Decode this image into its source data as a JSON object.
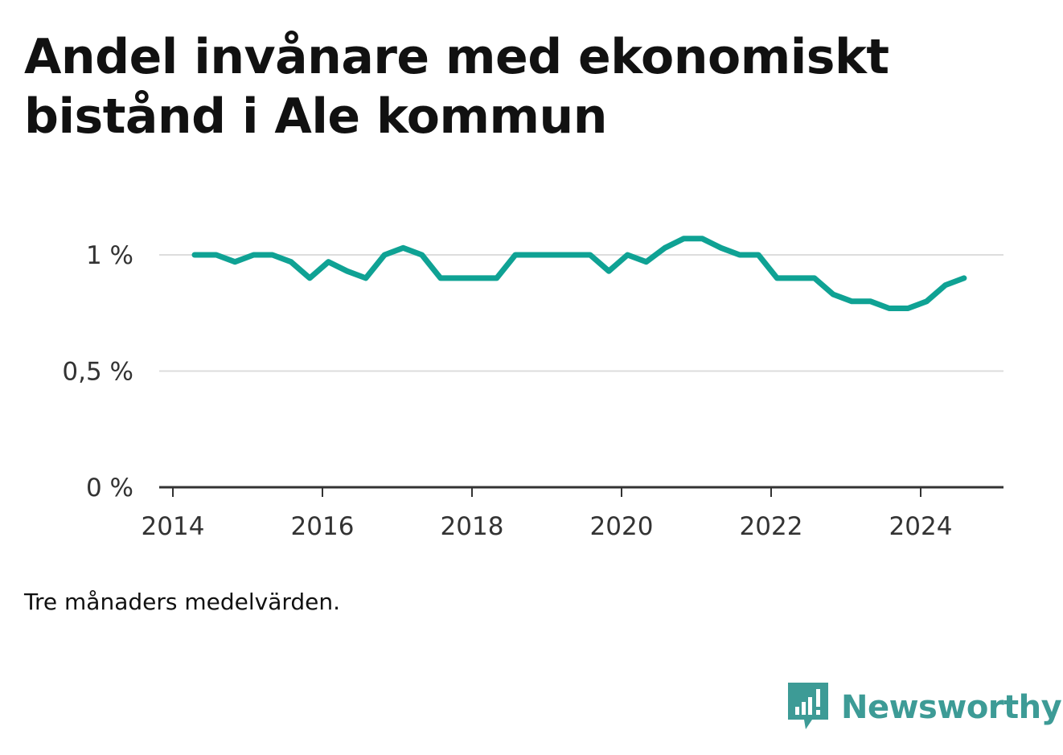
{
  "title": "Andel invånare med ekonomiskt bistånd i Ale kommun",
  "note": "Tre månaders medelvärden.",
  "brand": {
    "name": "Newsworthy",
    "icon": "newsworthy-logo-icon",
    "color": "#3d9b96"
  },
  "chart_data": {
    "type": "line",
    "title": "Andel invånare med ekonomiskt bistånd i Ale kommun",
    "xlabel": "",
    "ylabel": "",
    "xlim": [
      2014,
      2025.2
    ],
    "ylim": [
      0,
      1.15
    ],
    "grid": true,
    "legend": "none",
    "line_color": "#0fa294",
    "grid_color": "#dddddd",
    "axis_color": "#333333",
    "x_ticks": [
      {
        "value": 2014,
        "label": "2014"
      },
      {
        "value": 2016,
        "label": "2016"
      },
      {
        "value": 2018,
        "label": "2018"
      },
      {
        "value": 2020,
        "label": "2020"
      },
      {
        "value": 2022,
        "label": "2022"
      },
      {
        "value": 2024,
        "label": "2024"
      }
    ],
    "y_ticks": [
      {
        "value": 0,
        "label": "0 %"
      },
      {
        "value": 0.5,
        "label": "0,5 %"
      },
      {
        "value": 1,
        "label": "1 %"
      }
    ],
    "series": [
      {
        "x": [
          2014.29,
          2014.58,
          2014.83,
          2015.08,
          2015.33,
          2015.58,
          2015.83,
          2016.08,
          2016.33,
          2016.58,
          2016.83,
          2017.08,
          2017.33,
          2017.58,
          2017.83,
          2018.08,
          2018.33,
          2018.58,
          2018.83,
          2019.08,
          2019.33,
          2019.58,
          2019.83,
          2020.08,
          2020.33,
          2020.58,
          2020.83,
          2021.08,
          2021.33,
          2021.58,
          2021.83,
          2022.08,
          2022.33,
          2022.58,
          2022.83,
          2023.08,
          2023.33,
          2023.58,
          2023.83,
          2024.08,
          2024.33,
          2024.58
        ],
        "values": [
          1.0,
          1.0,
          0.97,
          1.0,
          1.0,
          0.97,
          0.9,
          0.97,
          0.93,
          0.9,
          1.0,
          1.03,
          1.0,
          0.9,
          0.9,
          0.9,
          0.9,
          1.0,
          1.0,
          1.0,
          1.0,
          1.0,
          0.93,
          1.0,
          0.97,
          1.03,
          1.07,
          1.07,
          1.03,
          1.0,
          1.0,
          0.9,
          0.9,
          0.9,
          0.83,
          0.8,
          0.8,
          0.77,
          0.77,
          0.8,
          0.87,
          0.9
        ]
      }
    ]
  }
}
